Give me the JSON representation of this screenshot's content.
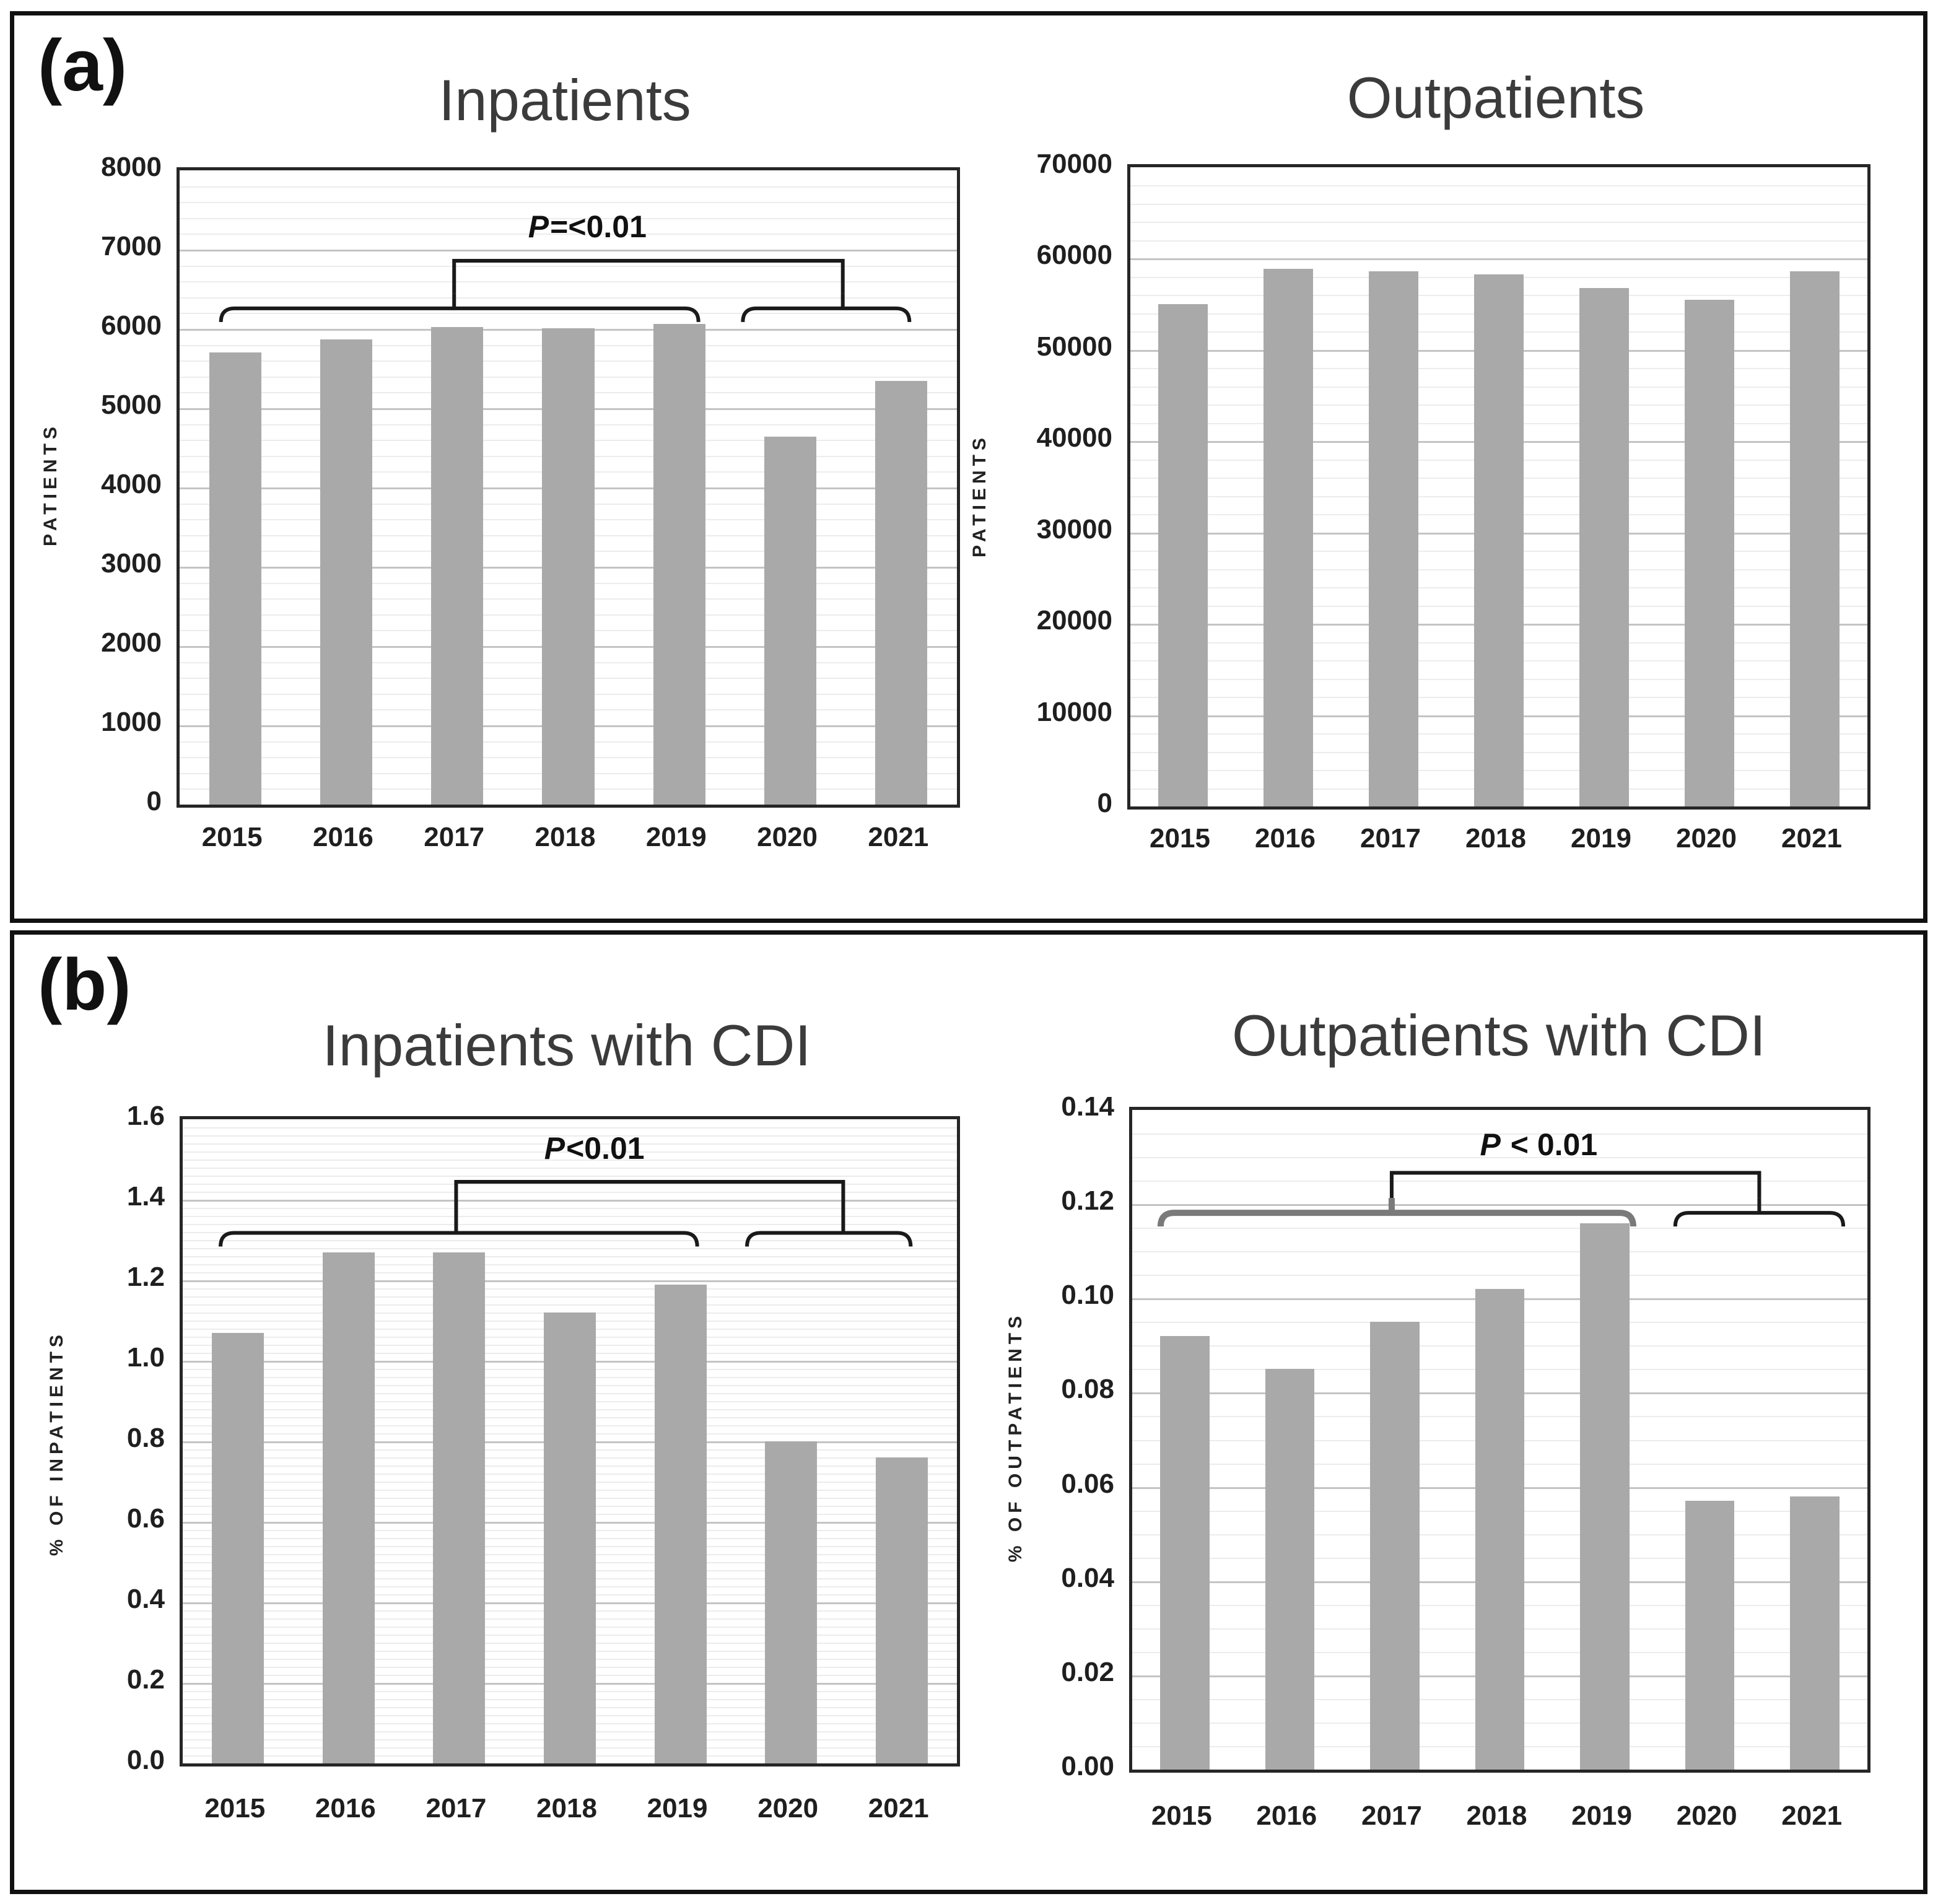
{
  "panels": [
    {
      "label": "(a)"
    },
    {
      "label": "(b)"
    }
  ],
  "colors": {
    "bar": "#a9a9a9",
    "bracket": "#1a1a1a",
    "bracket_heavy": "#7a7a7a"
  },
  "chart_data": [
    {
      "type": "bar",
      "panel": "a",
      "title": "Inpatients",
      "ylabel": "PATIENTS",
      "categories": [
        "2015",
        "2016",
        "2017",
        "2018",
        "2019",
        "2020",
        "2021"
      ],
      "values": [
        5700,
        5870,
        6020,
        6010,
        6060,
        4640,
        5340
      ],
      "ylim": [
        0,
        8000
      ],
      "ytick_step": 1000,
      "minor_divisions": 5,
      "ytick_format": "int",
      "grid": true,
      "legend": "none",
      "significance": {
        "label": "P=<0.01",
        "group1": {
          "from": -0.1,
          "to": 4.2,
          "nub": 2.0,
          "y": 6220
        },
        "group2": {
          "from": 4.6,
          "to": 6.1,
          "nub": 5.5,
          "y": 6220
        },
        "connector_y": 6820,
        "label_x": 3.2,
        "label_y": 7250
      }
    },
    {
      "type": "bar",
      "panel": "a",
      "title": "Outpatients",
      "ylabel": "PATIENTS",
      "categories": [
        "2015",
        "2016",
        "2017",
        "2018",
        "2019",
        "2020",
        "2021"
      ],
      "values": [
        55000,
        58900,
        58600,
        58300,
        56800,
        55500,
        58600
      ],
      "ylim": [
        0,
        70000
      ],
      "ytick_step": 10000,
      "minor_divisions": 5,
      "ytick_format": "int",
      "grid": true,
      "legend": "none",
      "significance": null
    },
    {
      "type": "bar",
      "panel": "b",
      "title": "Inpatients with CDI",
      "ylabel": "% OF INPATIENTS",
      "categories": [
        "2015",
        "2016",
        "2017",
        "2018",
        "2019",
        "2020",
        "2021"
      ],
      "values": [
        1.07,
        1.27,
        1.27,
        1.12,
        1.19,
        0.8,
        0.76
      ],
      "ylim": [
        0,
        1.6
      ],
      "ytick_step": 0.2,
      "minor_divisions": 10,
      "ytick_format": "1dp",
      "grid": true,
      "legend": "none",
      "significance": {
        "label": "P<0.01",
        "group1": {
          "from": -0.13,
          "to": 4.18,
          "nub": 2.0,
          "y": 1.31
        },
        "group2": {
          "from": 4.63,
          "to": 6.11,
          "nub": 5.5,
          "y": 1.31
        },
        "connector_y": 1.437,
        "label_x": 3.25,
        "label_y": 1.52
      }
    },
    {
      "type": "bar",
      "panel": "b",
      "title": "Outpatients with CDI",
      "ylabel": "% OF OUTPATIENTS",
      "categories": [
        "2015",
        "2016",
        "2017",
        "2018",
        "2019",
        "2020",
        "2021"
      ],
      "values": [
        0.092,
        0.085,
        0.095,
        0.102,
        0.116,
        0.057,
        0.058
      ],
      "ylim": [
        0,
        0.14
      ],
      "ytick_step": 0.02,
      "minor_divisions": 4,
      "ytick_format": "2dp",
      "grid": true,
      "legend": "none",
      "significance": {
        "label": "P < 0.01",
        "group1": {
          "from": -0.2,
          "to": 4.3,
          "nub": 2.0,
          "y": 0.1175,
          "heavy": true
        },
        "group2": {
          "from": 4.7,
          "to": 6.3,
          "nub": 5.5,
          "y": 0.1175
        },
        "connector_y": 0.126,
        "label_x": 3.4,
        "label_y": 0.132
      }
    }
  ]
}
